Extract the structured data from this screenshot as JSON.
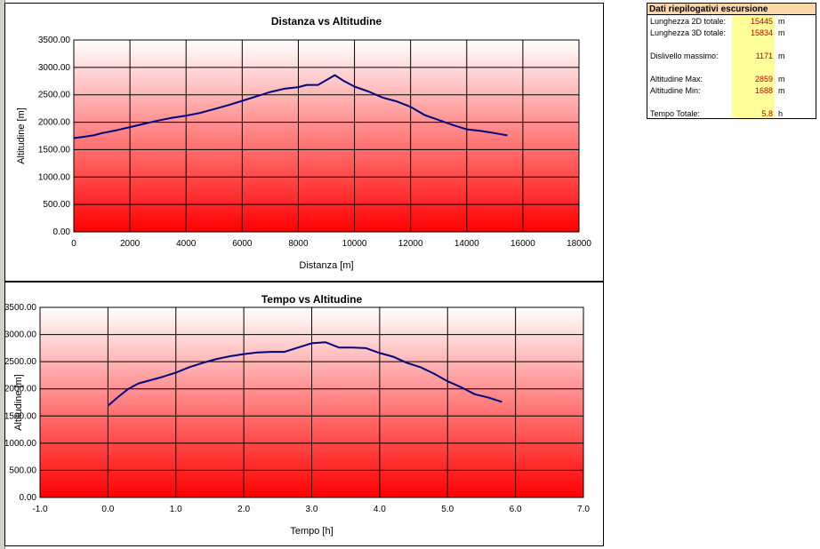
{
  "summary": {
    "title": "Dati riepilogativi escursione",
    "rows": [
      {
        "label": "Lunghezza 2D totale:",
        "value": "15445",
        "unit": "m"
      },
      {
        "label": "Lunghezza 3D totale:",
        "value": "15834",
        "unit": "m"
      },
      {
        "label": "Dislivello massimo:",
        "value": "1171",
        "unit": "m"
      },
      {
        "label": "Altitudine Max:",
        "value": "2859",
        "unit": "m"
      },
      {
        "label": "Altitudine Min:",
        "value": "1688",
        "unit": "m"
      },
      {
        "label": "Tempo Totale:",
        "value": "5.8",
        "unit": "h"
      }
    ]
  },
  "colors": {
    "line": "#000080",
    "gradient_top": "#ffffff",
    "gradient_bottom": "#ff0000",
    "summary_header": "#fbd6a8",
    "summary_values": "#ffff99"
  },
  "chart_data": [
    {
      "type": "line",
      "title": "Distanza vs Altitudine",
      "xlabel": "Distanza [m]",
      "ylabel": "Altitudine [m]",
      "xlim": [
        0,
        18000
      ],
      "ylim": [
        0,
        3500
      ],
      "xticks": [
        0,
        2000,
        4000,
        6000,
        8000,
        10000,
        12000,
        14000,
        16000,
        18000
      ],
      "yticks": [
        0,
        500,
        1000,
        1500,
        2000,
        2500,
        3000,
        3500
      ],
      "xtick_labels": [
        "0",
        "2000",
        "4000",
        "6000",
        "8000",
        "10000",
        "12000",
        "14000",
        "16000",
        "18000"
      ],
      "ytick_labels": [
        "0.00",
        "500.00",
        "1000.00",
        "1500.00",
        "2000.00",
        "2500.00",
        "3000.00",
        "3500.00"
      ],
      "grid": true,
      "series": [
        {
          "x": [
            0,
            300,
            700,
            1000,
            1500,
            2000,
            2500,
            3000,
            3500,
            4000,
            4500,
            5000,
            5500,
            6000,
            6500,
            7000,
            7500,
            8000,
            8300,
            8700,
            9000,
            9300,
            9600,
            10000,
            10500,
            11000,
            11500,
            12000,
            12500,
            13000,
            13500,
            14000,
            14500,
            15000,
            15445
          ],
          "y": [
            1710,
            1730,
            1760,
            1800,
            1850,
            1910,
            1970,
            2030,
            2080,
            2120,
            2170,
            2240,
            2310,
            2390,
            2470,
            2550,
            2610,
            2640,
            2680,
            2680,
            2770,
            2859,
            2760,
            2650,
            2560,
            2450,
            2380,
            2280,
            2130,
            2040,
            1950,
            1870,
            1840,
            1800,
            1760
          ]
        }
      ]
    },
    {
      "type": "line",
      "title": "Tempo vs Altitudine",
      "xlabel": "Tempo [h]",
      "ylabel": "Altitudine [m]",
      "xlim": [
        -1,
        7
      ],
      "ylim": [
        0,
        3500
      ],
      "xticks": [
        -1,
        0,
        1,
        2,
        3,
        4,
        5,
        6,
        7
      ],
      "yticks": [
        0,
        500,
        1000,
        1500,
        2000,
        2500,
        3000,
        3500
      ],
      "xtick_labels": [
        "-1.0",
        "0.0",
        "1.0",
        "2.0",
        "3.0",
        "4.0",
        "5.0",
        "6.0",
        "7.0"
      ],
      "ytick_labels": [
        "0.00",
        "500.00",
        "1000.00",
        "1500.00",
        "2000.00",
        "2500.00",
        "3000.00",
        "3500.00"
      ],
      "grid": true,
      "series": [
        {
          "x": [
            0,
            0.15,
            0.3,
            0.45,
            0.6,
            0.8,
            1.0,
            1.2,
            1.4,
            1.6,
            1.8,
            2.0,
            2.2,
            2.4,
            2.6,
            2.8,
            3.0,
            3.2,
            3.4,
            3.6,
            3.8,
            4.0,
            4.2,
            4.4,
            4.6,
            4.8,
            5.0,
            5.2,
            5.4,
            5.6,
            5.8
          ],
          "y": [
            1688,
            1850,
            2000,
            2100,
            2150,
            2220,
            2300,
            2400,
            2480,
            2550,
            2600,
            2640,
            2670,
            2680,
            2680,
            2760,
            2840,
            2859,
            2760,
            2760,
            2750,
            2660,
            2590,
            2480,
            2400,
            2280,
            2140,
            2030,
            1900,
            1840,
            1760
          ]
        }
      ]
    }
  ]
}
